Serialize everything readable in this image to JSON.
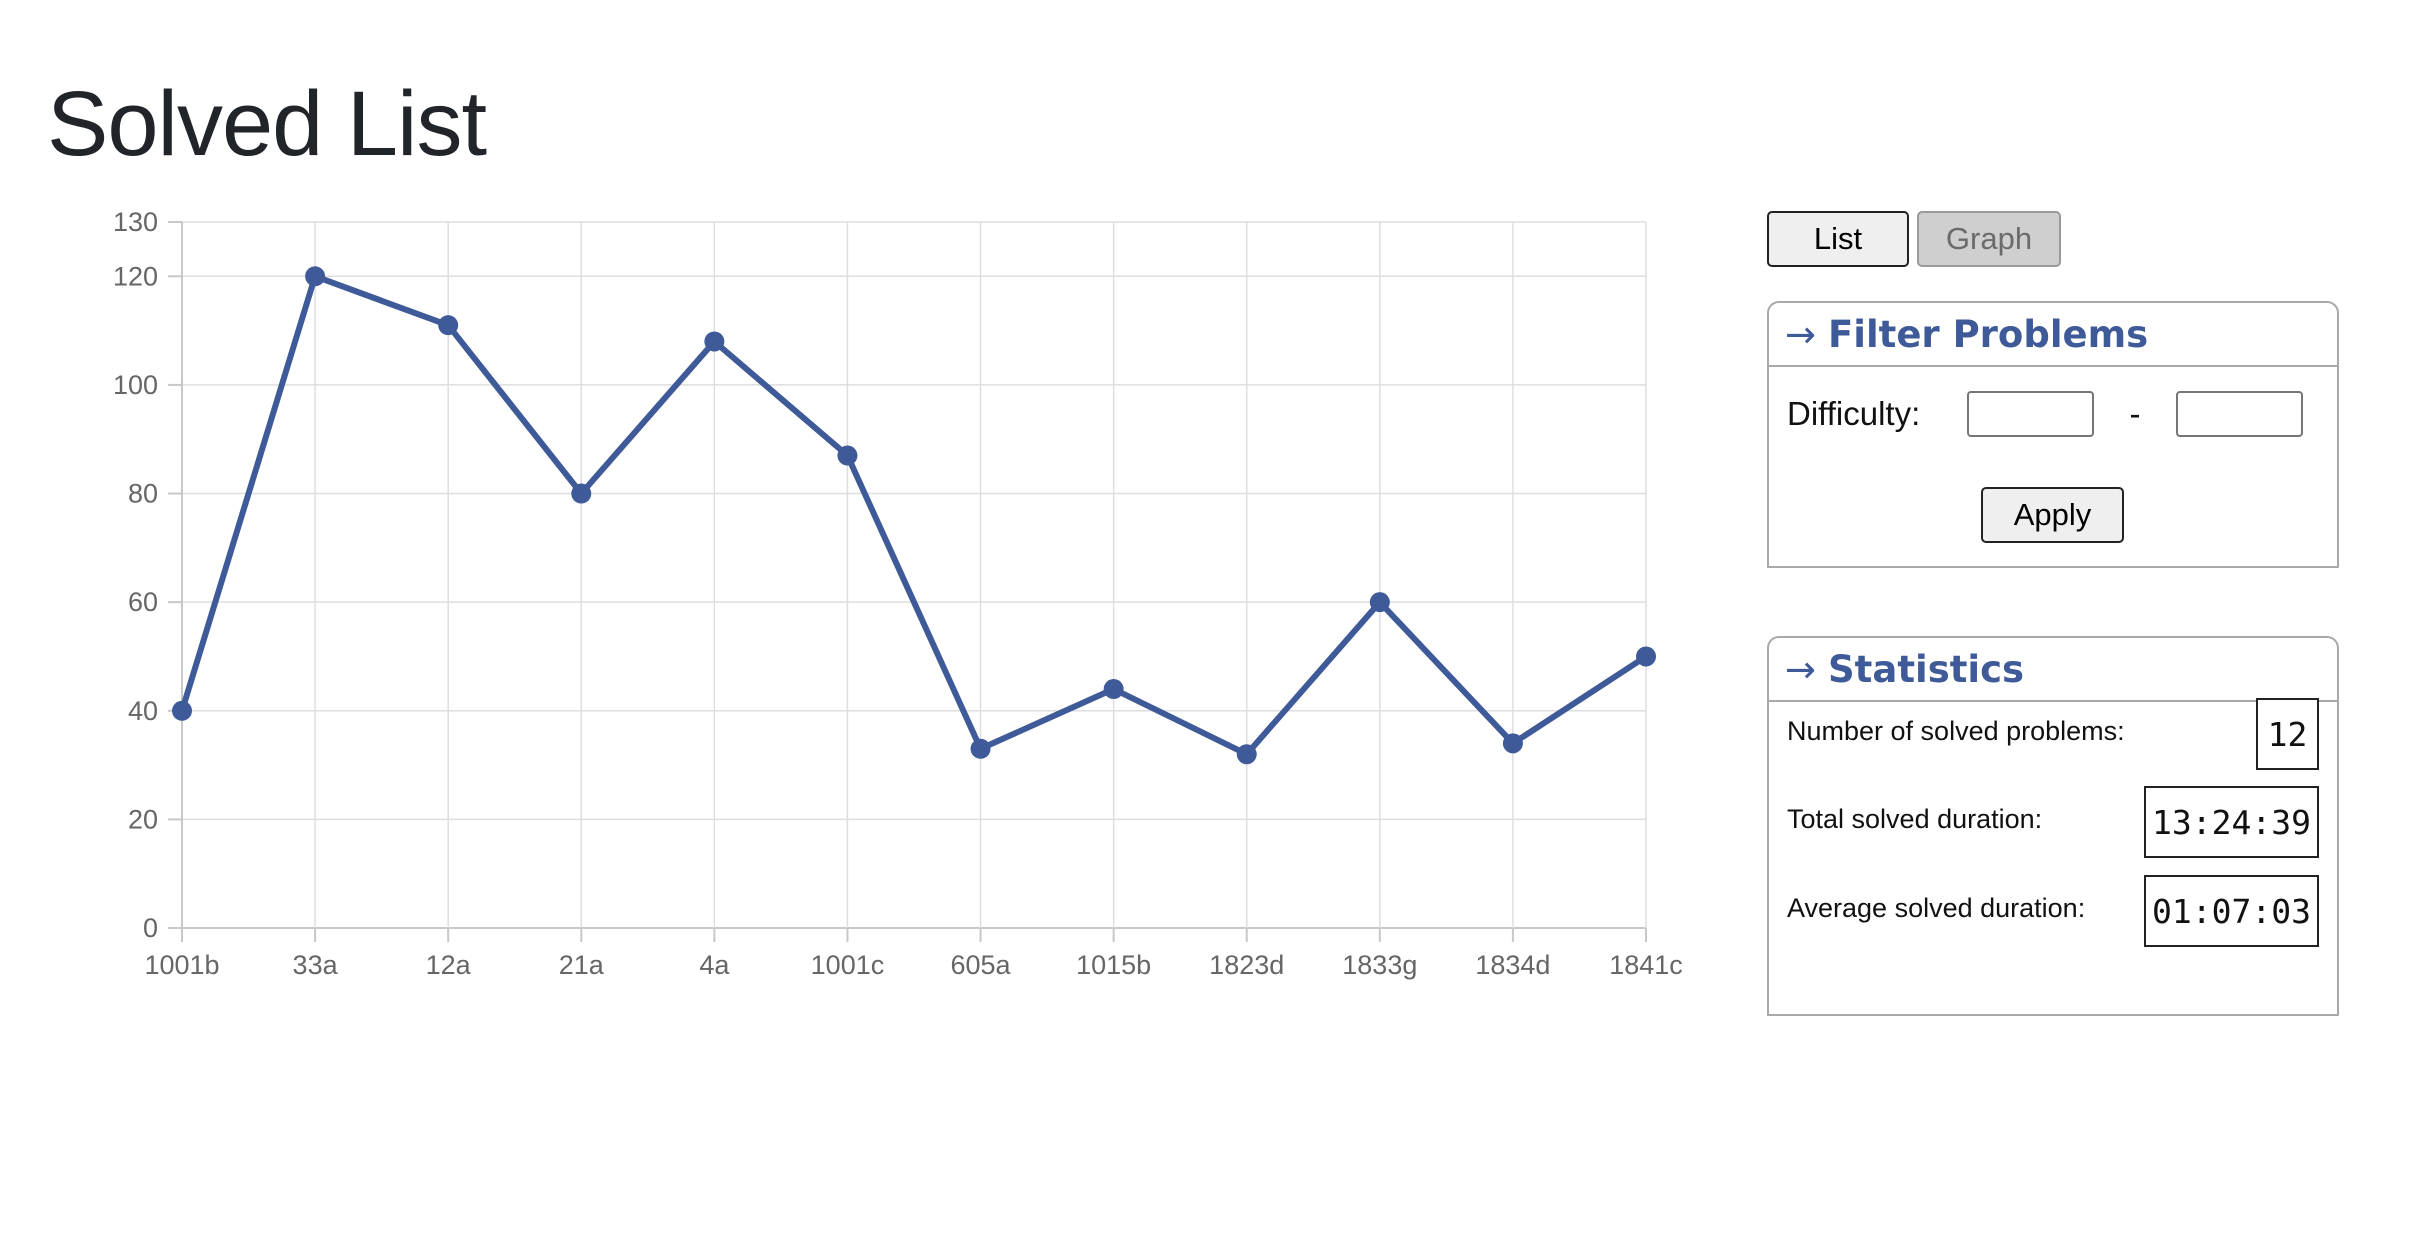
{
  "page": {
    "title": "Solved List"
  },
  "view_toggle": {
    "list_label": "List",
    "graph_label": "Graph",
    "active": "Graph"
  },
  "filter": {
    "header_arrow": "→",
    "header": "Filter Problems",
    "difficulty_label": "Difficulty:",
    "min_value": "",
    "max_value": "",
    "range_separator": "-",
    "apply_label": "Apply"
  },
  "stats": {
    "header_arrow": "→",
    "header": "Statistics",
    "solved_count_label": "Number of solved problems:",
    "solved_count_value": "12",
    "total_duration_label": "Total solved duration:",
    "total_duration_value": "13:24:39",
    "average_duration_label": "Average solved duration:",
    "average_duration_value": "01:07:03"
  },
  "colors": {
    "series": "#3f5a98",
    "header_text": "#3f5a98",
    "title_text": "#212529"
  },
  "chart_data": {
    "type": "line",
    "title": "",
    "xlabel": "",
    "ylabel": "",
    "categories": [
      "1001b",
      "33a",
      "12a",
      "21a",
      "4a",
      "1001c",
      "605a",
      "1015b",
      "1823d",
      "1833g",
      "1834d",
      "1841c"
    ],
    "series": [
      {
        "values": [
          40,
          120,
          111,
          80,
          108,
          87,
          33,
          44,
          32,
          60,
          34,
          50
        ]
      }
    ],
    "ylim": [
      0,
      130
    ],
    "yticks": [
      0,
      20,
      40,
      60,
      80,
      100,
      120,
      130
    ],
    "grid": true,
    "legend": "none"
  }
}
